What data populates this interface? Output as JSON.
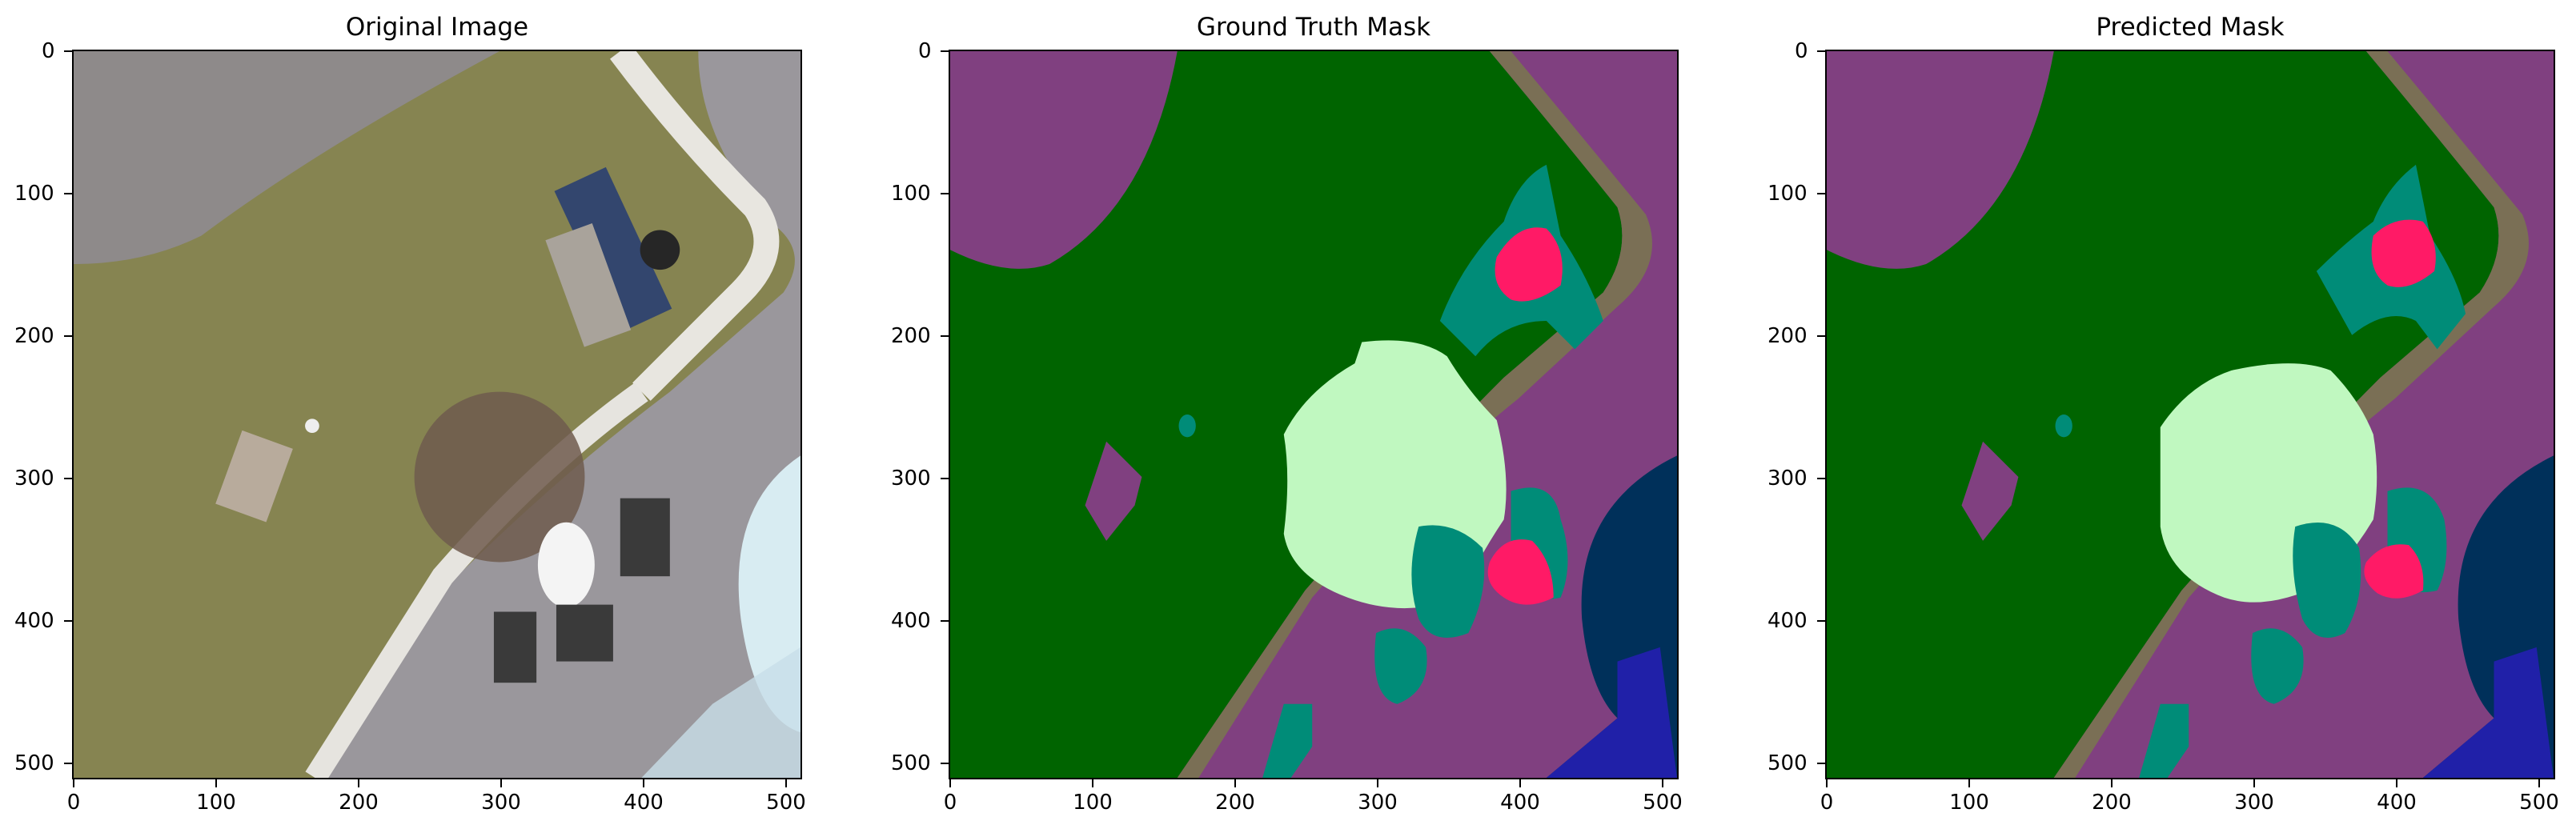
{
  "figure": {
    "panels": [
      {
        "title": "Original Image"
      },
      {
        "title": "Ground Truth Mask"
      },
      {
        "title": "Predicted Mask"
      }
    ],
    "axis": {
      "x_ticks": [
        "0",
        "100",
        "200",
        "300",
        "400",
        "500"
      ],
      "y_ticks": [
        "0",
        "100",
        "200",
        "300",
        "400",
        "500"
      ],
      "range": [
        0,
        512
      ]
    },
    "colors": {
      "grass": "#006400",
      "building": "#804080",
      "tree": "#c0f8c0",
      "vegetation": "#008c78",
      "person": "#ff1a66",
      "path": "#7a6f55",
      "pool": "#00305a",
      "water": "#2020a8"
    }
  }
}
